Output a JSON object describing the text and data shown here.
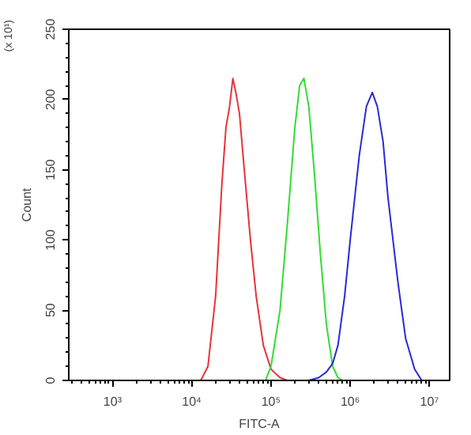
{
  "chart_data": {
    "type": "line",
    "xlabel": "FITC-A",
    "ylabel": "Count",
    "log": "x",
    "annotations": [
      "(x 10¹)"
    ],
    "xlim": [
      280,
      18000000
    ],
    "ylim": [
      0,
      250
    ],
    "xticks": [
      {
        "value": 1000,
        "label": "10³"
      },
      {
        "value": 10000,
        "label": "10⁴"
      },
      {
        "value": 100000,
        "label": "10⁵"
      },
      {
        "value": 1000000,
        "label": "10⁶"
      },
      {
        "value": 10000000,
        "label": "10⁷"
      }
    ],
    "yticks": [
      0,
      50,
      100,
      150,
      200,
      250
    ],
    "grid": false,
    "marker": "none",
    "line_style": "solid",
    "series": [
      {
        "color": "#e8333a",
        "x": [
          13000,
          16000,
          20000,
          24000,
          27000,
          30000,
          33000,
          36000,
          40000,
          46000,
          55000,
          65000,
          80000,
          100000,
          130000,
          160000
        ],
        "values": [
          0,
          10,
          60,
          140,
          180,
          195,
          215,
          205,
          190,
          150,
          100,
          60,
          25,
          8,
          2,
          0
        ]
      },
      {
        "color": "#33dd33",
        "x": [
          85000,
          100000,
          130000,
          160000,
          200000,
          230000,
          260000,
          300000,
          350000,
          420000,
          500000,
          600000,
          700000,
          800000
        ],
        "values": [
          0,
          10,
          50,
          110,
          180,
          210,
          215,
          195,
          150,
          90,
          40,
          10,
          2,
          0
        ]
      },
      {
        "color": "#2a2ad6",
        "x": [
          300000,
          400000,
          500000,
          600000,
          700000,
          850000,
          1000000,
          1300000,
          1600000,
          1900000,
          2200000,
          2600000,
          3000000,
          4000000,
          5000000,
          6500000,
          8000000
        ],
        "values": [
          0,
          2,
          6,
          12,
          25,
          60,
          100,
          160,
          195,
          205,
          195,
          170,
          130,
          70,
          30,
          8,
          0
        ]
      }
    ]
  }
}
